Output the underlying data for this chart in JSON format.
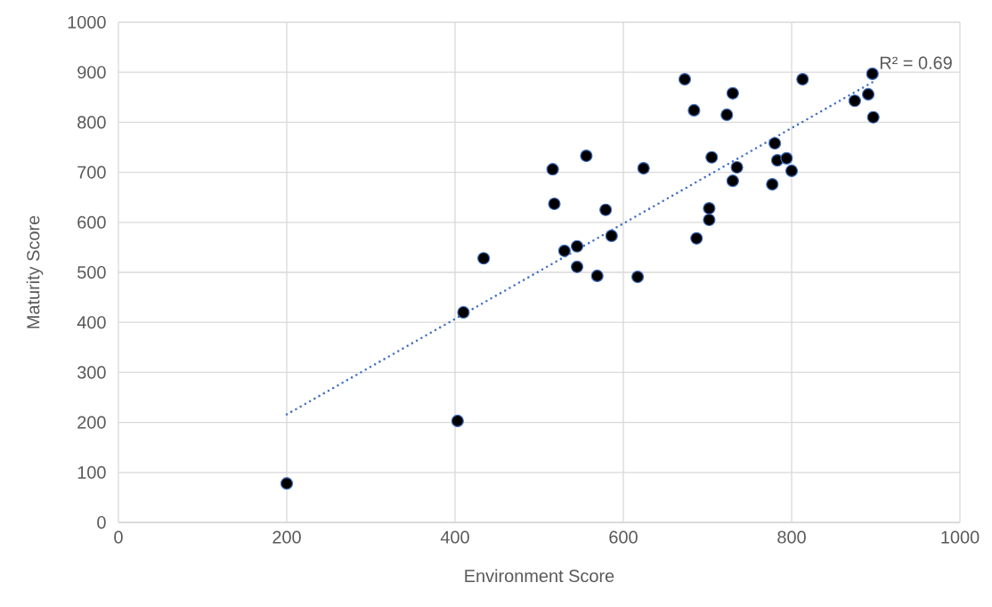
{
  "chart_data": {
    "type": "scatter",
    "xlabel": "Environment Score",
    "ylabel": "Maturity Score",
    "xlim": [
      0,
      1000
    ],
    "xticks": [
      0,
      200,
      400,
      600,
      800,
      1000
    ],
    "ylim": [
      0,
      1000
    ],
    "yticks": [
      0,
      100,
      200,
      300,
      400,
      500,
      600,
      700,
      800,
      900,
      1000
    ],
    "grid": true,
    "marker": "circle",
    "annotations": [
      "R² = 0.69"
    ],
    "series": [
      {
        "color": "#000000",
        "x": [
          200,
          403,
          410,
          434,
          516,
          518,
          530,
          545,
          545,
          556,
          569,
          579,
          586,
          617,
          624,
          673,
          684,
          687,
          702,
          702,
          705,
          723,
          730,
          730,
          735,
          777,
          780,
          783,
          794,
          800,
          813,
          875,
          891,
          896,
          897
        ],
        "values": [
          78,
          203,
          420,
          528,
          706,
          637,
          543,
          552,
          511,
          733,
          493,
          625,
          573,
          491,
          708,
          886,
          824,
          568,
          628,
          605,
          730,
          815,
          858,
          683,
          710,
          676,
          758,
          724,
          728,
          703,
          886,
          843,
          856,
          897,
          810
        ]
      },
      {
        "type": "line",
        "color": "#4472c4",
        "line_style": "dotted",
        "marker": "none",
        "x": [
          200,
          897
        ],
        "values": [
          216,
          881
        ]
      }
    ]
  }
}
